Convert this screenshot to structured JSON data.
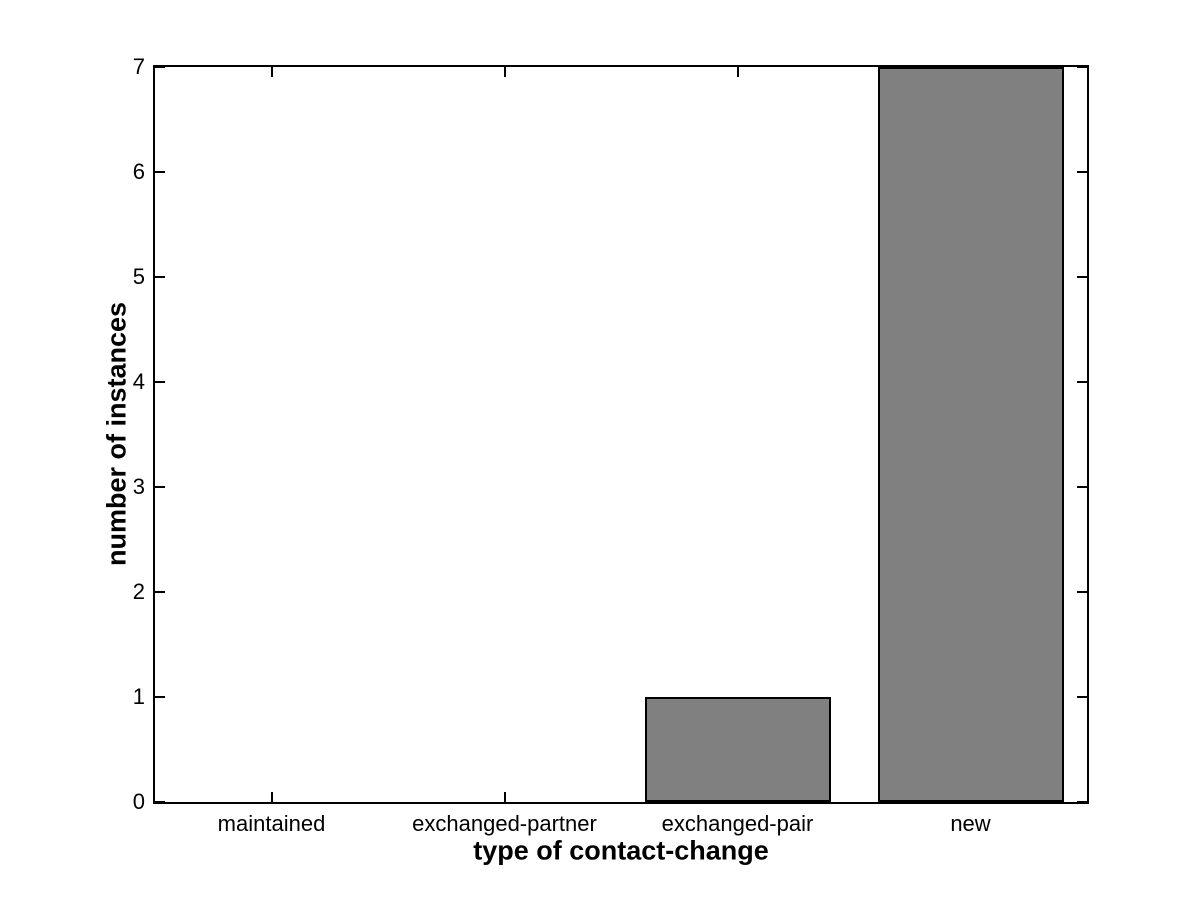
{
  "figure": {
    "background": "#ffffff",
    "axis_color": "#000000"
  },
  "chart_data": {
    "type": "bar",
    "categories": [
      "maintained",
      "exchanged-partner",
      "exchanged-pair",
      "new"
    ],
    "values": [
      0,
      0,
      1,
      7
    ],
    "title": "",
    "xlabel": "type of contact-change",
    "ylabel": "number of instances",
    "ylim": [
      0,
      7
    ],
    "yticks": [
      0,
      1,
      2,
      3,
      4,
      5,
      6,
      7
    ],
    "bar_width_fraction": 0.8,
    "bar_face_color": "#808080",
    "bar_edge_color": "#000000",
    "grid": false,
    "legend_position": "none",
    "box": true
  }
}
